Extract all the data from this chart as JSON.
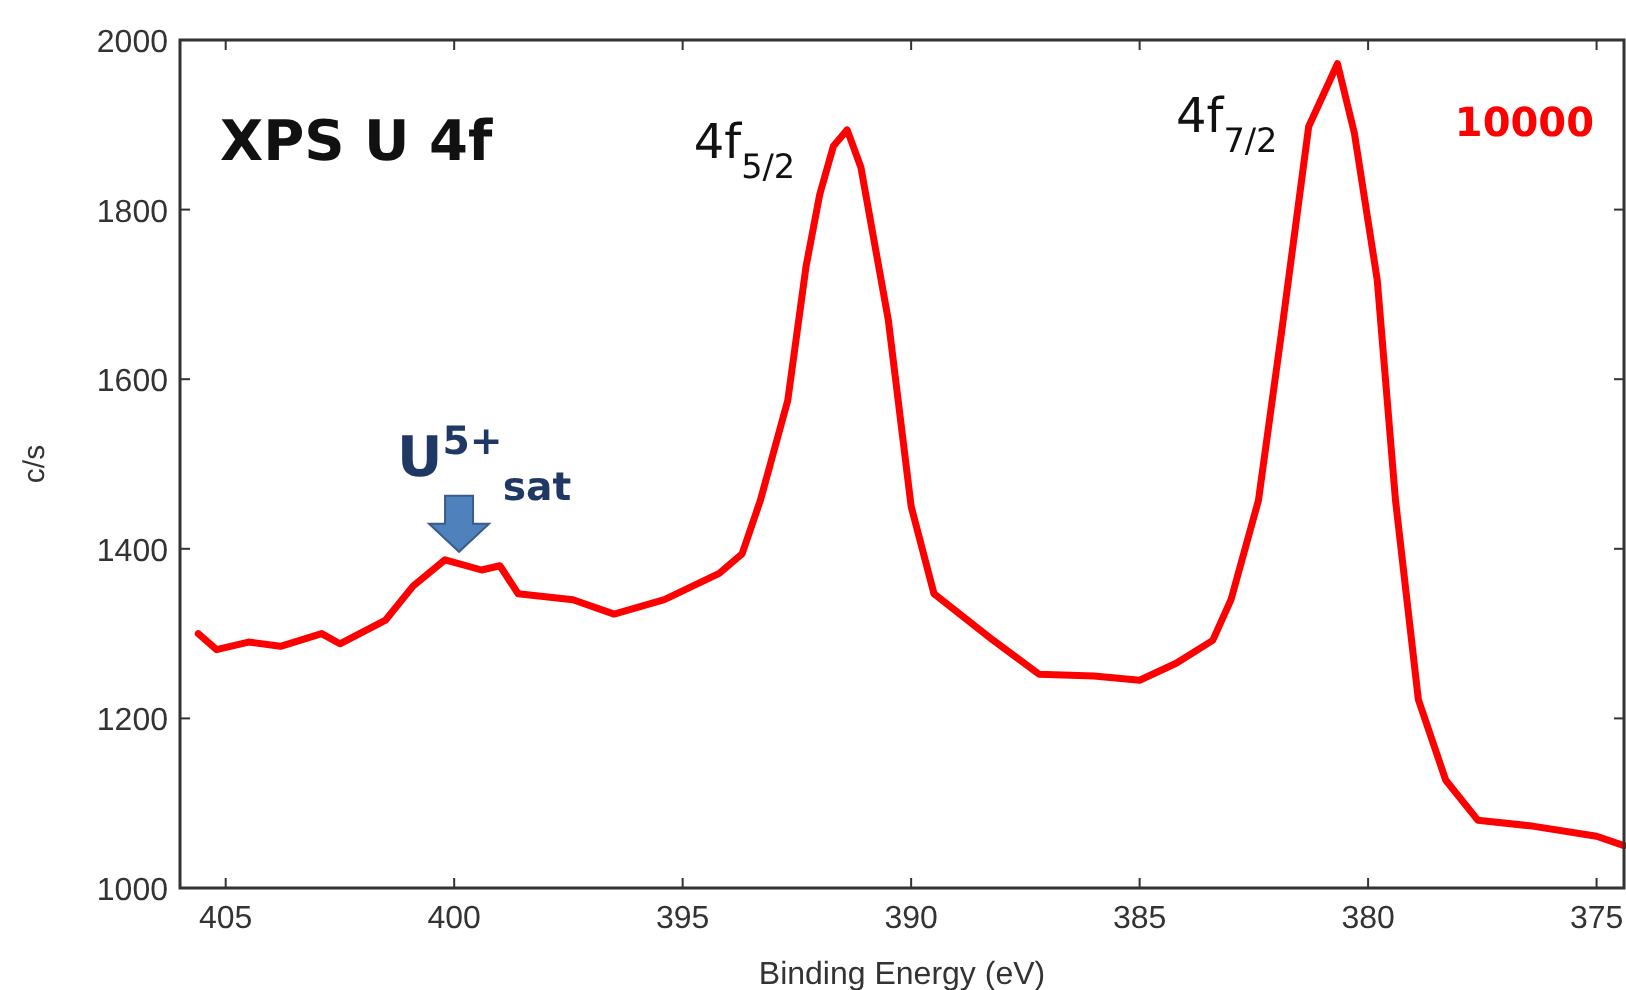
{
  "chart_data": {
    "type": "line",
    "title": "XPS U 4f",
    "xlabel": "Binding Energy (eV)",
    "ylabel": "c/s",
    "xlim": [
      406,
      374.4
    ],
    "xticks": [
      405,
      400,
      395,
      390,
      385,
      380,
      375
    ],
    "ylim": [
      1000,
      2000
    ],
    "yticks": [
      1000,
      1200,
      1400,
      1600,
      1800,
      2000
    ],
    "grid": false,
    "legend": "top right",
    "annotations": [
      {
        "text": "4f$_{5/2}$",
        "x": 391.4,
        "y": 1894
      },
      {
        "text": "4f$_{7/2}$",
        "x": 380.67,
        "y": 1972
      },
      {
        "text": "U$^{5+}$$_{sat}$",
        "x": 400.2,
        "y": 1387
      }
    ],
    "series": [
      {
        "name": "10000",
        "color": "#ff0000",
        "x": [
          405.6,
          405.2,
          404.5,
          403.8,
          402.9,
          402.5,
          401.5,
          400.9,
          400.2,
          399.4,
          399.0,
          398.6,
          397.4,
          396.5,
          395.4,
          394.2,
          393.7,
          393.3,
          392.7,
          392.3,
          392.0,
          391.7,
          391.4,
          391.1,
          390.8,
          390.5,
          390.0,
          389.5,
          388.2,
          387.2,
          386.0,
          385.0,
          384.2,
          383.4,
          383.0,
          382.4,
          381.9,
          381.3,
          380.67,
          380.3,
          379.8,
          379.4,
          378.9,
          378.3,
          377.6,
          376.4,
          375.0,
          374.4
        ],
        "values": [
          1300,
          1281,
          1290,
          1285,
          1300,
          1288,
          1316,
          1356,
          1387,
          1375,
          1380,
          1347,
          1340,
          1323,
          1340,
          1371,
          1394,
          1457,
          1575,
          1733,
          1818,
          1875,
          1894,
          1850,
          1760,
          1670,
          1450,
          1347,
          1292,
          1252,
          1250,
          1245,
          1265,
          1292,
          1340,
          1457,
          1653,
          1898,
          1972,
          1890,
          1717,
          1457,
          1222,
          1127,
          1080,
          1073,
          1061,
          1050
        ]
      }
    ]
  }
}
